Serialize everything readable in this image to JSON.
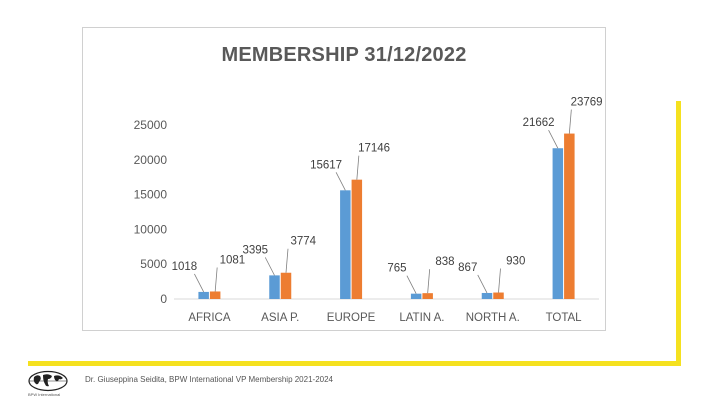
{
  "chart_data": {
    "type": "bar",
    "title": "MEMBERSHIP 31/12/2022",
    "categories": [
      "AFRICA",
      "ASIA P.",
      "EUROPE",
      "LATIN A.",
      "NORTH A.",
      "TOTAL"
    ],
    "series": [
      {
        "values": [
          1018,
          3395,
          15617,
          765,
          867,
          21662
        ],
        "color": "#5b9bd5"
      },
      {
        "values": [
          1081,
          3774,
          17146,
          838,
          930,
          23769
        ],
        "color": "#ed7d31"
      }
    ],
    "ylim": [
      0,
      25000
    ],
    "yticks": [
      0,
      5000,
      10000,
      15000,
      20000,
      25000
    ],
    "grid": false,
    "legend": "none"
  },
  "footer": {
    "text": "Dr. Giuseppina Seidita, BPW International VP Membership 2021-2024",
    "logo_caption": "BPW International"
  },
  "colors": {
    "accent": "#f5e11f",
    "series1": "#5b9bd5",
    "series2": "#ed7d31"
  }
}
